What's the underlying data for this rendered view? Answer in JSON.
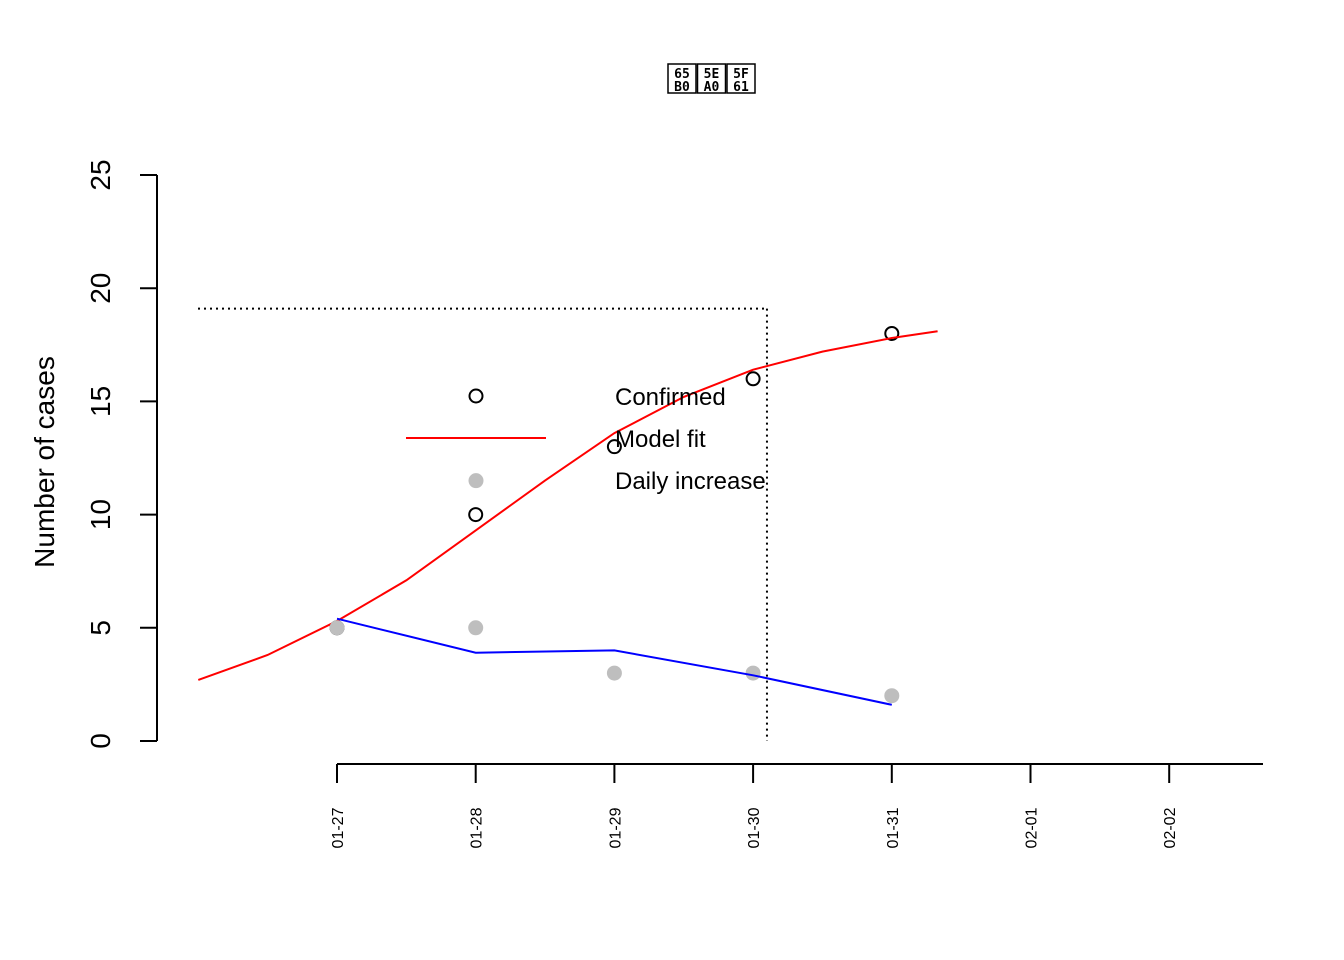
{
  "chart_data": {
    "type": "line",
    "title": [
      "65 5E 5F",
      "B0 A0 61"
    ],
    "ylabel": "Number of cases",
    "xlabel": "",
    "ylim": [
      0,
      25
    ],
    "yticks": [
      0,
      5,
      10,
      15,
      20,
      25
    ],
    "xticks": [
      "01-27",
      "01-28",
      "01-29",
      "01-30",
      "01-31",
      "02-01",
      "02-02"
    ],
    "series": [
      {
        "name": "Confirmed",
        "style": "open-circle",
        "color": "#000000",
        "points": [
          {
            "x": "01-27",
            "y": 5
          },
          {
            "x": "01-28",
            "y": 10
          },
          {
            "x": "01-29",
            "y": 13
          },
          {
            "x": "01-30",
            "y": 16
          },
          {
            "x": "01-31",
            "y": 18
          }
        ]
      },
      {
        "name": "Model fit",
        "style": "line",
        "color": "#ff0000",
        "points": [
          {
            "x": -1.0,
            "y": 2.7
          },
          {
            "x": -0.5,
            "y": 3.8
          },
          {
            "x": 0.0,
            "y": 5.3
          },
          {
            "x": 0.5,
            "y": 7.1
          },
          {
            "x": 1.0,
            "y": 9.3
          },
          {
            "x": 1.5,
            "y": 11.5
          },
          {
            "x": 2.0,
            "y": 13.6
          },
          {
            "x": 2.5,
            "y": 15.2
          },
          {
            "x": 3.0,
            "y": 16.4
          },
          {
            "x": 3.5,
            "y": 17.2
          },
          {
            "x": 4.0,
            "y": 17.8
          },
          {
            "x": 4.33,
            "y": 18.1
          }
        ]
      },
      {
        "name": "Daily increase",
        "style": "filled-circle",
        "color": "#bebebe",
        "points": [
          {
            "x": "01-27",
            "y": 5
          },
          {
            "x": "01-28",
            "y": 5
          },
          {
            "x": "01-29",
            "y": 3
          },
          {
            "x": "01-30",
            "y": 3
          },
          {
            "x": "01-31",
            "y": 2
          }
        ]
      },
      {
        "name": "",
        "style": "line",
        "color": "#0000ff",
        "points": [
          {
            "x": "01-27",
            "y": 5.4
          },
          {
            "x": "01-28",
            "y": 3.9
          },
          {
            "x": "01-29",
            "y": 4.0
          },
          {
            "x": "01-30",
            "y": 2.9
          },
          {
            "x": "01-31",
            "y": 1.6
          }
        ]
      }
    ],
    "reference_lines": {
      "horizontal_y": 19.1,
      "vertical_x": 3.1
    },
    "legend": {
      "placement": "center",
      "entries": [
        "Confirmed",
        "Model fit",
        "Daily increase"
      ],
      "extra_marker_y": 11.5
    },
    "grid": false
  }
}
